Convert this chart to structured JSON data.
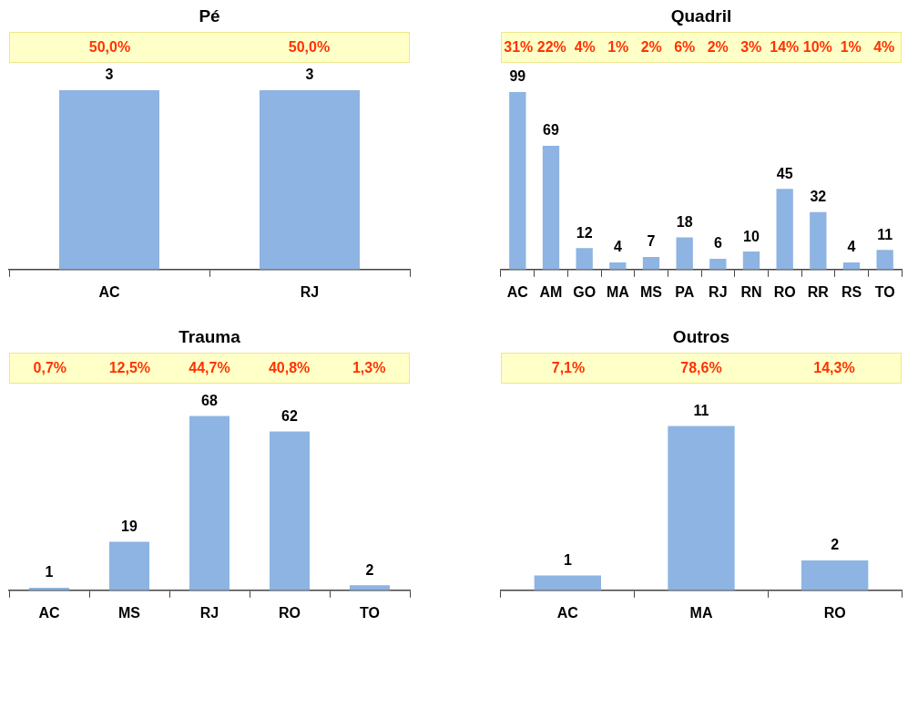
{
  "chart_data": [
    {
      "type": "bar",
      "title": "Pé",
      "categories": [
        "AC",
        "RJ"
      ],
      "values": [
        3,
        3
      ],
      "color": "#8db4e2",
      "data_labels": true,
      "grid": false,
      "legend": false,
      "tick_labels": "x",
      "annotations": [
        "50,0%",
        "50,0%"
      ]
    },
    {
      "type": "bar",
      "title": "Quadril",
      "categories": [
        "AC",
        "AM",
        "GO",
        "MA",
        "MS",
        "PA",
        "RJ",
        "RN",
        "RO",
        "RR",
        "RS",
        "TO"
      ],
      "values": [
        99,
        69,
        12,
        4,
        7,
        18,
        6,
        10,
        45,
        32,
        4,
        11
      ],
      "color": "#8db4e2",
      "data_labels": true,
      "grid": false,
      "legend": false,
      "tick_labels": "x",
      "annotations": [
        "31%",
        "22%",
        "4%",
        "1%",
        "2%",
        "6%",
        "2%",
        "3%",
        "14%",
        "10%",
        "1%",
        "4%"
      ]
    },
    {
      "type": "bar",
      "title": "Trauma",
      "categories": [
        "AC",
        "MS",
        "RJ",
        "RO",
        "TO"
      ],
      "values": [
        1,
        19,
        68,
        62,
        2
      ],
      "color": "#8db4e2",
      "data_labels": true,
      "grid": false,
      "legend": false,
      "tick_labels": "x",
      "annotations": [
        "0,7%",
        "12,5%",
        "44,7%",
        "40,8%",
        "1,3%"
      ]
    },
    {
      "type": "bar",
      "title": "Outros",
      "categories": [
        "AC",
        "MA",
        "RO"
      ],
      "values": [
        1,
        11,
        2
      ],
      "color": "#8db4e2",
      "data_labels": true,
      "grid": false,
      "legend": false,
      "tick_labels": "x",
      "annotations": [
        "7,1%",
        "78,6%",
        "14,3%"
      ]
    }
  ]
}
